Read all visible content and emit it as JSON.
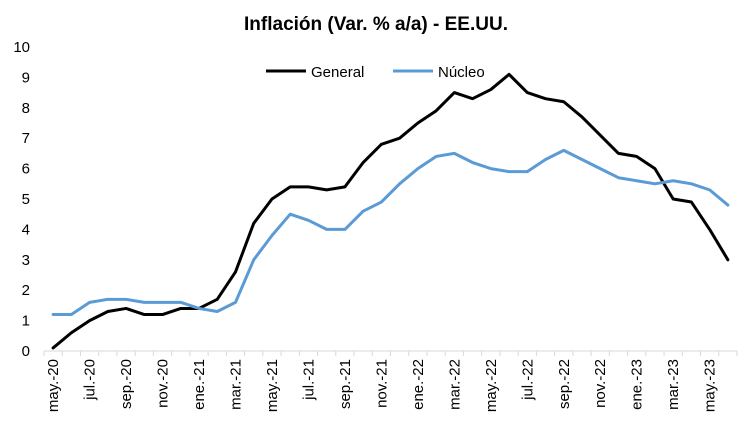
{
  "chart_data": {
    "type": "line",
    "title": "Inflación (Var. % a/a) - EE.UU.",
    "xlabel": "",
    "ylabel": "",
    "ylim": [
      0,
      10
    ],
    "yticks": [
      0,
      1,
      2,
      3,
      4,
      5,
      6,
      7,
      8,
      9,
      10
    ],
    "grid": false,
    "legend_position": "top-center",
    "x": [
      "may.-20",
      "jun.-20",
      "jul.-20",
      "ago.-20",
      "sep.-20",
      "oct.-20",
      "nov.-20",
      "dic.-20",
      "ene.-21",
      "feb.-21",
      "mar.-21",
      "abr.-21",
      "may.-21",
      "jun.-21",
      "jul.-21",
      "ago.-21",
      "sep.-21",
      "oct.-21",
      "nov.-21",
      "dic.-21",
      "ene.-22",
      "feb.-22",
      "mar.-22",
      "abr.-22",
      "may.-22",
      "jun.-22",
      "jul.-22",
      "ago.-22",
      "sep.-22",
      "oct.-22",
      "nov.-22",
      "dic.-22",
      "ene.-23",
      "feb.-23",
      "mar.-23",
      "abr.-23",
      "may.-23",
      "jun.-23"
    ],
    "tick_labels": [
      "may.-20",
      "jul.-20",
      "sep.-20",
      "nov.-20",
      "ene.-21",
      "mar.-21",
      "may.-21",
      "jul.-21",
      "sep.-21",
      "nov.-21",
      "ene.-22",
      "mar.-22",
      "may.-22",
      "jul.-22",
      "sep.-22",
      "nov.-22",
      "ene.-23",
      "mar.-23",
      "may.-23"
    ],
    "series": [
      {
        "name": "General",
        "color": "#000000",
        "values": [
          0.1,
          0.6,
          1.0,
          1.3,
          1.4,
          1.2,
          1.2,
          1.4,
          1.4,
          1.7,
          2.6,
          4.2,
          5.0,
          5.4,
          5.4,
          5.3,
          5.4,
          6.2,
          6.8,
          7.0,
          7.5,
          7.9,
          8.5,
          8.3,
          8.6,
          9.1,
          8.5,
          8.3,
          8.2,
          7.7,
          7.1,
          6.5,
          6.4,
          6.0,
          5.0,
          4.9,
          4.0,
          3.0
        ]
      },
      {
        "name": "Núcleo",
        "color": "#5B9BD5",
        "values": [
          1.2,
          1.2,
          1.6,
          1.7,
          1.7,
          1.6,
          1.6,
          1.6,
          1.4,
          1.3,
          1.6,
          3.0,
          3.8,
          4.5,
          4.3,
          4.0,
          4.0,
          4.6,
          4.9,
          5.5,
          6.0,
          6.4,
          6.5,
          6.2,
          6.0,
          5.9,
          5.9,
          6.3,
          6.6,
          6.3,
          6.0,
          5.7,
          5.6,
          5.5,
          5.6,
          5.5,
          5.3,
          4.8
        ]
      }
    ]
  }
}
